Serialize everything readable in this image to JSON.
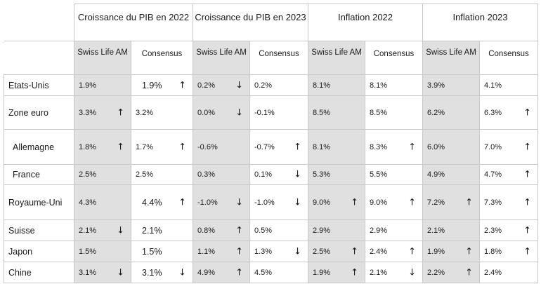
{
  "columns": [
    {
      "group": "Croissance du PIB en 2022",
      "model": "Swiss Life AM",
      "consensus": "Consensus"
    },
    {
      "group": "Croissance du PIB en 2023",
      "model": "Swiss Life AM",
      "consensus": "Consensus"
    },
    {
      "group": "Inflation 2022",
      "model": "Swiss Life AM",
      "consensus": "Consensus"
    },
    {
      "group": "Inflation 2023",
      "model": "Swiss Life AM",
      "consensus": "Consensus"
    }
  ],
  "icons": {
    "up": "arrow-up-icon",
    "down": "arrow-down-icon"
  },
  "rows": [
    {
      "country": "Etats-Unis",
      "cells": [
        {
          "value": "1.9%",
          "arrow": ""
        },
        {
          "value": "1.9%",
          "arrow": "up"
        },
        {
          "value": "0.2%",
          "arrow": "down"
        },
        {
          "value": "0.2%",
          "arrow": ""
        },
        {
          "value": "8.1%",
          "arrow": ""
        },
        {
          "value": "8.1%",
          "arrow": ""
        },
        {
          "value": "3.9%",
          "arrow": ""
        },
        {
          "value": "4.1%",
          "arrow": ""
        }
      ]
    },
    {
      "country": "Zone euro",
      "cells": [
        {
          "value": "3.3%",
          "arrow": "up"
        },
        {
          "value": "3.2%",
          "arrow": ""
        },
        {
          "value": "0.0%",
          "arrow": "down"
        },
        {
          "value": "-0.1%",
          "arrow": ""
        },
        {
          "value": "8.5%",
          "arrow": ""
        },
        {
          "value": "8.5%",
          "arrow": ""
        },
        {
          "value": "6.2%",
          "arrow": ""
        },
        {
          "value": "6.3%",
          "arrow": "up"
        }
      ]
    },
    {
      "country": "Allemagne",
      "cells": [
        {
          "value": "1.8%",
          "arrow": "up"
        },
        {
          "value": "1.7%",
          "arrow": "up"
        },
        {
          "value": "-0.6%",
          "arrow": ""
        },
        {
          "value": "-0.7%",
          "arrow": "up"
        },
        {
          "value": "8.1%",
          "arrow": ""
        },
        {
          "value": "8.3%",
          "arrow": "up"
        },
        {
          "value": "6.0%",
          "arrow": ""
        },
        {
          "value": "7.0%",
          "arrow": "up"
        }
      ]
    },
    {
      "country": "France",
      "cells": [
        {
          "value": "2.5%",
          "arrow": ""
        },
        {
          "value": "2.5%",
          "arrow": ""
        },
        {
          "value": "0.3%",
          "arrow": ""
        },
        {
          "value": "0.1%",
          "arrow": "down"
        },
        {
          "value": "5.3%",
          "arrow": ""
        },
        {
          "value": "5.5%",
          "arrow": ""
        },
        {
          "value": "4.9%",
          "arrow": ""
        },
        {
          "value": "4.7%",
          "arrow": "up"
        }
      ]
    },
    {
      "country": "Royaume-Uni",
      "cells": [
        {
          "value": "4.3%",
          "arrow": ""
        },
        {
          "value": "4.4%",
          "arrow": "up"
        },
        {
          "value": "-1.0%",
          "arrow": "down"
        },
        {
          "value": "-1.0%",
          "arrow": "down"
        },
        {
          "value": "9.0%",
          "arrow": "up"
        },
        {
          "value": "9.0%",
          "arrow": "up"
        },
        {
          "value": "7.2%",
          "arrow": "up"
        },
        {
          "value": "7.3%",
          "arrow": "up"
        }
      ]
    },
    {
      "country": "Suisse",
      "cells": [
        {
          "value": "2.1%",
          "arrow": "down"
        },
        {
          "value": "2.1%",
          "arrow": ""
        },
        {
          "value": "0.8%",
          "arrow": "up"
        },
        {
          "value": "0.5%",
          "arrow": ""
        },
        {
          "value": "2.9%",
          "arrow": ""
        },
        {
          "value": "2.9%",
          "arrow": ""
        },
        {
          "value": "2.1%",
          "arrow": ""
        },
        {
          "value": "2.3%",
          "arrow": "up"
        }
      ]
    },
    {
      "country": "Japon",
      "cells": [
        {
          "value": "1.5%",
          "arrow": ""
        },
        {
          "value": "1.5%",
          "arrow": ""
        },
        {
          "value": "1.1%",
          "arrow": "up"
        },
        {
          "value": "1.3%",
          "arrow": "down"
        },
        {
          "value": "2.5%",
          "arrow": "up"
        },
        {
          "value": "2.4%",
          "arrow": "up"
        },
        {
          "value": "1.9%",
          "arrow": "up"
        },
        {
          "value": "1.8%",
          "arrow": "up"
        }
      ]
    },
    {
      "country": "Chine",
      "cells": [
        {
          "value": "3.1%",
          "arrow": "down"
        },
        {
          "value": "3.1%",
          "arrow": "down"
        },
        {
          "value": "4.9%",
          "arrow": "up"
        },
        {
          "value": "4.5%",
          "arrow": ""
        },
        {
          "value": "1.9%",
          "arrow": "up"
        },
        {
          "value": "2.1%",
          "arrow": "down"
        },
        {
          "value": "2.2%",
          "arrow": "up"
        },
        {
          "value": "2.4%",
          "arrow": ""
        }
      ]
    }
  ]
}
